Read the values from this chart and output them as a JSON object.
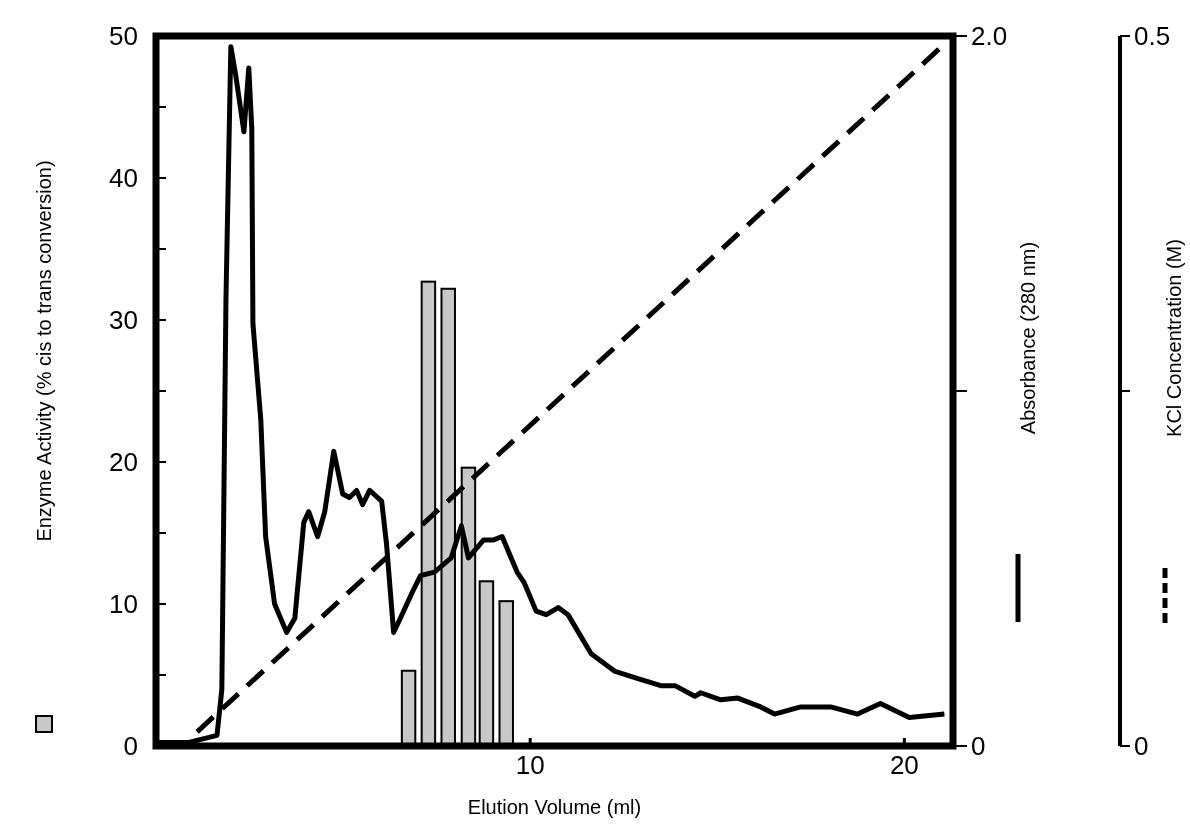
{
  "chart_data": {
    "type": "bar",
    "xlabel": "Elution Volume (ml)",
    "ylabel": "Enzyme Activity (% cis to trans conversion)",
    "y2label": "Absorbance (280 nm)",
    "y3label": "KCl Concentration (M)",
    "xlim": [
      0,
      21.3
    ],
    "xticks": [
      10,
      20
    ],
    "ylim": [
      0,
      50
    ],
    "yticks": [
      0,
      {
        "value": 5,
        "label": null
      },
      10,
      {
        "value": 15,
        "label": null
      },
      20,
      {
        "value": 25,
        "label": null
      },
      30,
      {
        "value": 35,
        "label": null
      },
      40,
      {
        "value": 45,
        "label": null
      },
      50
    ],
    "y2lim": [
      0,
      2
    ],
    "y2ticks": [
      0,
      {
        "value": 1,
        "label": null
      },
      {
        "value": 2,
        "label": "2.0"
      }
    ],
    "y3lim": [
      0,
      0.5
    ],
    "y3ticks": [
      0,
      {
        "value": 0.25,
        "label": null
      },
      0.5
    ],
    "series": [
      {
        "color": "#c8c8c8",
        "x": [
          6.75,
          7.28,
          7.81,
          8.35,
          8.83,
          9.36
        ],
        "values": [
          5.3,
          32.7,
          32.2,
          19.6,
          11.6,
          10.2
        ]
      },
      {
        "type": "line",
        "axis": "y2",
        "color": "#000000",
        "line_style": "solid",
        "x": [
          0.08,
          0.88,
          1.63,
          1.76,
          1.87,
          2.0,
          2.13,
          2.35,
          2.48,
          2.56,
          2.59,
          2.8,
          2.93,
          3.17,
          3.49,
          3.71,
          3.95,
          4.08,
          4.32,
          4.51,
          4.75,
          4.99,
          5.17,
          5.36,
          5.52,
          5.71,
          6.03,
          6.16,
          6.35,
          6.53,
          6.88,
          7.07,
          7.44,
          7.89,
          8.16,
          8.35,
          8.75,
          9.01,
          9.25,
          9.65,
          9.84,
          10.16,
          10.43,
          10.75,
          11.01,
          11.63,
          12.27,
          12.88,
          13.49,
          13.87,
          14.4,
          14.56,
          15.09,
          15.55,
          16.16,
          16.53,
          17.23,
          18.03,
          18.75,
          19.36,
          20.13,
          21.07
        ],
        "values": [
          0.01,
          0.01,
          0.03,
          0.16,
          1.26,
          1.97,
          1.89,
          1.73,
          1.91,
          1.74,
          1.19,
          0.92,
          0.59,
          0.4,
          0.32,
          0.36,
          0.63,
          0.66,
          0.59,
          0.66,
          0.83,
          0.71,
          0.7,
          0.72,
          0.68,
          0.72,
          0.69,
          0.57,
          0.32,
          0.36,
          0.44,
          0.48,
          0.49,
          0.53,
          0.62,
          0.53,
          0.58,
          0.58,
          0.59,
          0.49,
          0.46,
          0.38,
          0.37,
          0.39,
          0.37,
          0.26,
          0.21,
          0.19,
          0.17,
          0.17,
          0.14,
          0.15,
          0.13,
          0.135,
          0.11,
          0.09,
          0.11,
          0.11,
          0.09,
          0.12,
          0.08,
          0.09
        ]
      },
      {
        "type": "line",
        "axis": "y3",
        "color": "#000000",
        "line_style": "dashed",
        "x": [
          1.1,
          21.1
        ],
        "values": [
          0.01,
          0.495
        ]
      }
    ]
  }
}
